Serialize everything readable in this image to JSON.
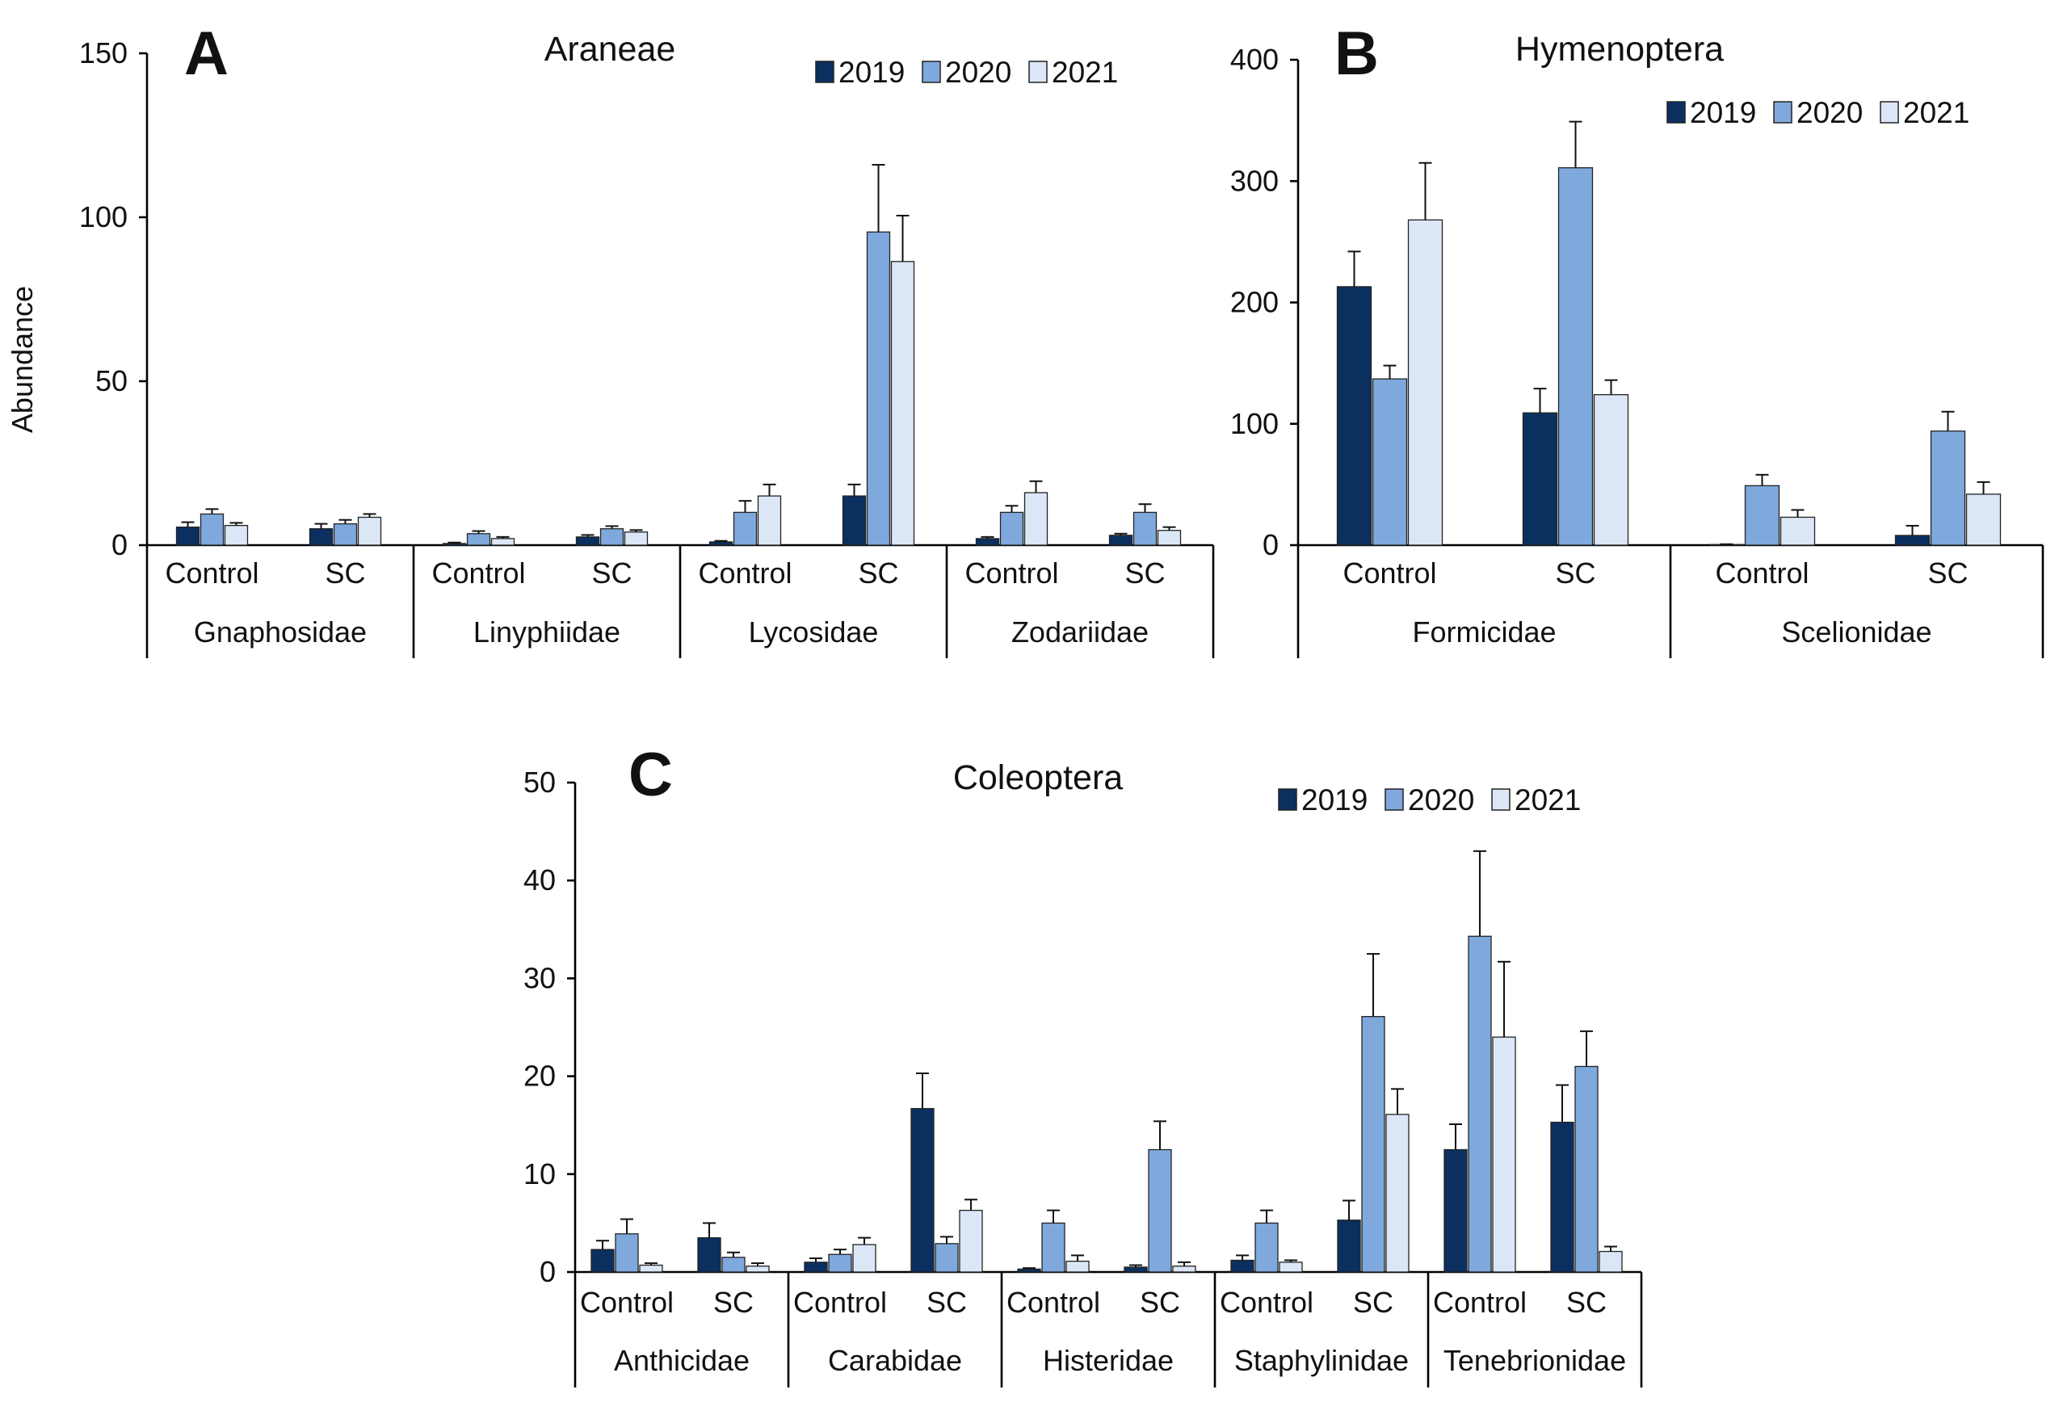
{
  "figure": {
    "years": [
      "2019",
      "2020",
      "2021"
    ],
    "colors": {
      "2019": "#0b3060",
      "2020": "#7fa9dd",
      "2021": "#dbe7f6"
    },
    "bar_stroke": "#222222",
    "y_axis_label": "Abundance"
  },
  "chart_data": [
    {
      "type": "bar",
      "panel": "A",
      "title": "Araneae",
      "ylabel": "Abundance",
      "ylim": [
        0,
        150
      ],
      "yticks": [
        0,
        50,
        100,
        150
      ],
      "legend": "top-right",
      "series_names": [
        "2019",
        "2020",
        "2021"
      ],
      "groups": [
        {
          "family": "Gnaphosidae",
          "treatments": [
            {
              "label": "Control",
              "values": [
                5.5,
                9.5,
                6
              ],
              "errors": [
                1.5,
                1.5,
                0.8
              ]
            },
            {
              "label": "SC",
              "values": [
                5,
                6.5,
                8.5
              ],
              "errors": [
                1.5,
                1.2,
                1
              ]
            }
          ]
        },
        {
          "family": "Linyphiidae",
          "treatments": [
            {
              "label": "Control",
              "values": [
                0.5,
                3.5,
                2
              ],
              "errors": [
                0.3,
                0.8,
                0.5
              ]
            },
            {
              "label": "SC",
              "values": [
                2.5,
                5,
                4
              ],
              "errors": [
                0.6,
                0.8,
                0.6
              ]
            }
          ]
        },
        {
          "family": "Lycosidae",
          "treatments": [
            {
              "label": "Control",
              "values": [
                1,
                10,
                15
              ],
              "errors": [
                0.3,
                3.5,
                3.5
              ]
            },
            {
              "label": "SC",
              "values": [
                15,
                95.5,
                86.5
              ],
              "errors": [
                3.5,
                20.5,
                14
              ]
            }
          ]
        },
        {
          "family": "Zodariidae",
          "treatments": [
            {
              "label": "Control",
              "values": [
                2,
                10,
                16
              ],
              "errors": [
                0.5,
                2,
                3.5
              ]
            },
            {
              "label": "SC",
              "values": [
                3,
                10,
                4.5
              ],
              "errors": [
                0.5,
                2.5,
                1
              ]
            }
          ]
        }
      ]
    },
    {
      "type": "bar",
      "panel": "B",
      "title": "Hymenoptera",
      "ylabel": "",
      "ylim": [
        0,
        400
      ],
      "yticks": [
        0,
        100,
        200,
        300,
        400
      ],
      "legend": "top-right",
      "series_names": [
        "2019",
        "2020",
        "2021"
      ],
      "groups": [
        {
          "family": "Formicidae",
          "treatments": [
            {
              "label": "Control",
              "values": [
                213,
                137,
                268
              ],
              "errors": [
                29,
                11,
                47
              ]
            },
            {
              "label": "SC",
              "values": [
                109,
                311,
                124
              ],
              "errors": [
                20,
                38,
                12
              ]
            }
          ]
        },
        {
          "family": "Scelionidae",
          "treatments": [
            {
              "label": "Control",
              "values": [
                0.5,
                49,
                23
              ],
              "errors": [
                0.3,
                9,
                6
              ]
            },
            {
              "label": "SC",
              "values": [
                8,
                94,
                42
              ],
              "errors": [
                8,
                16,
                10
              ]
            }
          ]
        }
      ]
    },
    {
      "type": "bar",
      "panel": "C",
      "title": "Coleoptera",
      "ylabel": "",
      "ylim": [
        0,
        50
      ],
      "yticks": [
        0,
        10,
        20,
        30,
        40,
        50
      ],
      "legend": "top-right",
      "series_names": [
        "2019",
        "2020",
        "2021"
      ],
      "groups": [
        {
          "family": "Anthicidae",
          "treatments": [
            {
              "label": "Control",
              "values": [
                2.3,
                3.9,
                0.7
              ],
              "errors": [
                0.9,
                1.5,
                0.2
              ]
            },
            {
              "label": "SC",
              "values": [
                3.5,
                1.5,
                0.6
              ],
              "errors": [
                1.5,
                0.5,
                0.3
              ]
            }
          ]
        },
        {
          "family": "Carabidae",
          "treatments": [
            {
              "label": "Control",
              "values": [
                1,
                1.8,
                2.8
              ],
              "errors": [
                0.4,
                0.5,
                0.7
              ]
            },
            {
              "label": "SC",
              "values": [
                16.7,
                2.9,
                6.3
              ],
              "errors": [
                3.6,
                0.7,
                1.1
              ]
            }
          ]
        },
        {
          "family": "Histeridae",
          "treatments": [
            {
              "label": "Control",
              "values": [
                0.3,
                5,
                1.1
              ],
              "errors": [
                0.1,
                1.3,
                0.6
              ]
            },
            {
              "label": "SC",
              "values": [
                0.5,
                12.5,
                0.6
              ],
              "errors": [
                0.2,
                2.9,
                0.4
              ]
            }
          ]
        },
        {
          "family": "Staphylinidae",
          "treatments": [
            {
              "label": "Control",
              "values": [
                1.2,
                5,
                1
              ],
              "errors": [
                0.5,
                1.3,
                0.2
              ]
            },
            {
              "label": "SC",
              "values": [
                5.3,
                26.1,
                16.1
              ],
              "errors": [
                2,
                6.4,
                2.6
              ]
            }
          ]
        },
        {
          "family": "Tenebrionidae",
          "treatments": [
            {
              "label": "Control",
              "values": [
                12.5,
                34.3,
                24
              ],
              "errors": [
                2.6,
                8.7,
                7.7
              ]
            },
            {
              "label": "SC",
              "values": [
                15.3,
                21,
                2.1
              ],
              "errors": [
                3.8,
                3.6,
                0.5
              ]
            }
          ]
        }
      ]
    }
  ]
}
